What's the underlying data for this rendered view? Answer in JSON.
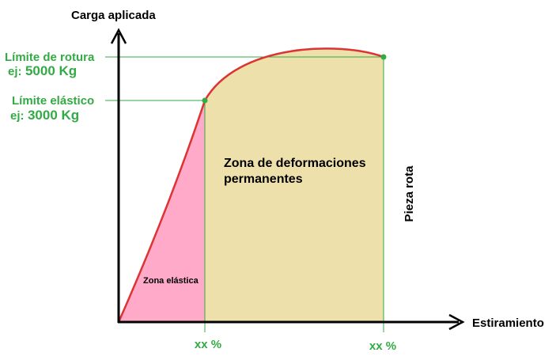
{
  "axes": {
    "y_label": "Carga aplicada",
    "x_label": "Estiramiento"
  },
  "points": [
    {
      "label": "Límite elástico",
      "prefix": "ej:",
      "value": "3000 Kg",
      "x_label": "xx %"
    },
    {
      "label": "Límite de rotura",
      "prefix": "ej:",
      "value": "5000 Kg",
      "x_label": "xx %"
    }
  ],
  "zones": {
    "elastic": "Zona elástica",
    "plastic": [
      "Zona de deformaciones",
      "permanentes"
    ]
  },
  "annotation": "Pieza rota"
}
